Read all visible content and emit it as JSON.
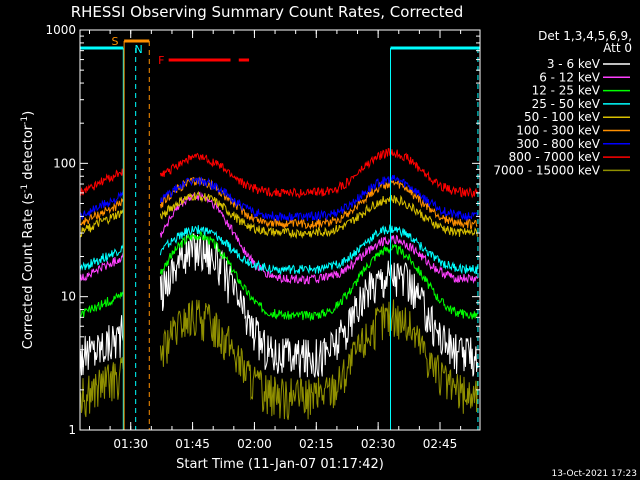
{
  "chart_data": {
    "type": "line",
    "title": "RHESSI Observing Summary Count Rates, Corrected",
    "xlabel": "Start Time (11-Jan-07 01:17:42)",
    "ylabel_main": "Corrected Count Rate (s",
    "ylabel_sup1": "-1",
    "ylabel_mid": " detector",
    "ylabel_sup2": "-1",
    "ylabel_end": ")",
    "x_unit": "minutes since 01:17:42",
    "xlim": [
      0,
      97
    ],
    "ylim": [
      1,
      1000
    ],
    "yscale": "log",
    "yticks": [
      {
        "value": 1,
        "label": "1"
      },
      {
        "value": 10,
        "label": "10"
      },
      {
        "value": 100,
        "label": "100"
      },
      {
        "value": 1000,
        "label": "1000"
      }
    ],
    "xticks": [
      {
        "value": 12.3,
        "label": "01:30"
      },
      {
        "value": 27.3,
        "label": "01:45"
      },
      {
        "value": 42.3,
        "label": "02:00"
      },
      {
        "value": 57.3,
        "label": "02:15"
      },
      {
        "value": 72.3,
        "label": "02:30"
      },
      {
        "value": 87.3,
        "label": "02:45"
      }
    ],
    "legend": {
      "header1": "Det 1,3,4,5,6,9,",
      "header2": "Att 0",
      "placement": "right"
    },
    "series": [
      {
        "name": "3 - 6 keV",
        "color": "#ffffff",
        "base": 3.6,
        "amp1": 6.5,
        "amp2": 4.2
      },
      {
        "name": "6 - 12 keV",
        "color": "#ff40ff",
        "base": 13.5,
        "amp1": 4.2,
        "amp2": 2.0
      },
      {
        "name": "12 - 25 keV",
        "color": "#00ff00",
        "base": 7.2,
        "amp1": 4.0,
        "amp2": 3.2
      },
      {
        "name": "25 - 50 keV",
        "color": "#00ffff",
        "base": 16,
        "amp1": 2.0,
        "amp2": 2.0
      },
      {
        "name": "50 - 100 keV",
        "color": "#d8c000",
        "base": 30,
        "amp1": 1.9,
        "amp2": 1.8
      },
      {
        "name": "100 - 300 keV",
        "color": "#ff9000",
        "base": 35,
        "amp1": 2.1,
        "amp2": 2.0
      },
      {
        "name": "300 - 800 keV",
        "color": "#0000ff",
        "base": 40,
        "amp1": 1.85,
        "amp2": 1.9
      },
      {
        "name": "800 - 7000 keV",
        "color": "#ff0000",
        "base": 60,
        "amp1": 1.85,
        "amp2": 2.0
      },
      {
        "name": "7000 - 15000 keV",
        "color": "#909000",
        "base": 1.8,
        "amp1": 4.0,
        "amp2": 4.0
      }
    ],
    "annotations": {
      "saa_label": "S",
      "night_label": "N",
      "flare_label": "F",
      "saa_color": "#ff9000",
      "night_color": "#00ffff",
      "flare_color": "#ff0000"
    },
    "grid": false
  },
  "footer": {
    "timestamp": "13-Oct-2021 17:23"
  }
}
